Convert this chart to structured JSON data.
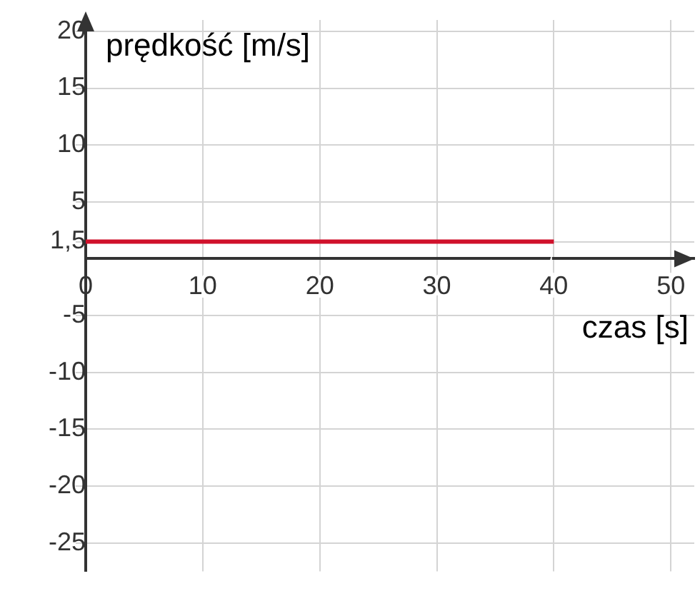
{
  "chart_data": {
    "type": "line",
    "xlabel": "czas [s]",
    "ylabel": "prędkość [m/s]",
    "x": [
      0,
      40
    ],
    "series": [
      {
        "color": "#d0112b",
        "values": [
          1.5,
          1.5
        ]
      }
    ],
    "xlim": [
      0,
      52
    ],
    "ylim": [
      -27.5,
      21
    ],
    "xticks": [
      0,
      10,
      20,
      30,
      40,
      50
    ],
    "yticks": [
      -25,
      -20,
      -15,
      -10,
      -5,
      {
        "value": 1.5,
        "label": "1,5"
      },
      5,
      10,
      15,
      20
    ],
    "grid": true,
    "legend": false,
    "marker": "none",
    "line_style": "solid"
  }
}
